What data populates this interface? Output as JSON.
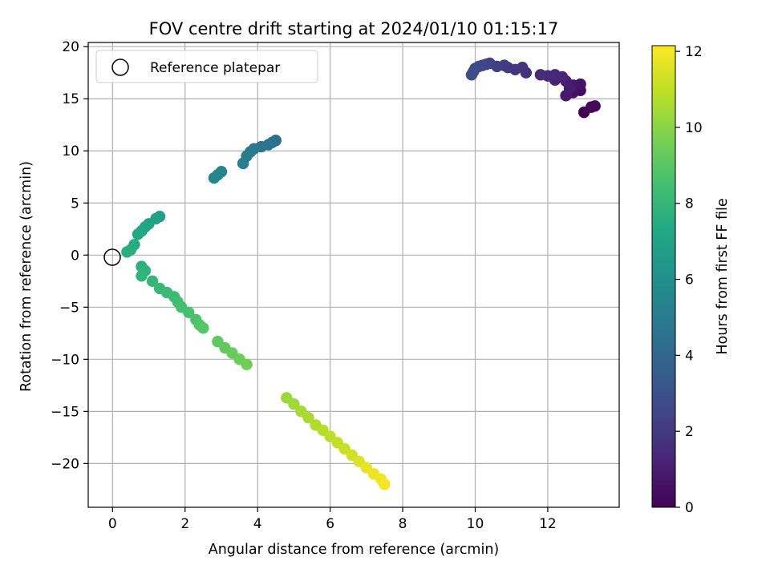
{
  "chart_data": {
    "type": "scatter",
    "title": "FOV centre drift starting at 2024/01/10 01:15:17",
    "xlabel": "Angular distance from reference (arcmin)",
    "ylabel": "Rotation from reference (arcmin)",
    "colorbar_label": "Hours from first FF file",
    "colormap": "viridis",
    "xlim": [
      -0.67,
      13.97
    ],
    "ylim": [
      -24.2,
      20.4
    ],
    "clim": [
      0,
      12.15
    ],
    "xticks": [
      0,
      2,
      4,
      6,
      8,
      10,
      12
    ],
    "xtick_labels": [
      "0",
      "2",
      "4",
      "6",
      "8",
      "10",
      "12"
    ],
    "yticks": [
      20,
      15,
      10,
      5,
      0,
      -5,
      -10,
      -15,
      -20
    ],
    "ytick_labels": [
      "20",
      "15",
      "10",
      "5",
      "0",
      "−5",
      "−10",
      "−15",
      "−20"
    ],
    "cticks": [
      0,
      2,
      4,
      6,
      8,
      10,
      12
    ],
    "ctick_labels": [
      "0",
      "2",
      "4",
      "6",
      "8",
      "10",
      "12"
    ],
    "grid": true,
    "legend": {
      "position": "top-left",
      "entries": [
        "Reference platepar"
      ]
    },
    "reference": {
      "x": 0,
      "y": 0
    },
    "points": [
      [
        13.0,
        13.7,
        0.05
      ],
      [
        13.2,
        14.2,
        0.15
      ],
      [
        13.3,
        14.3,
        0.25
      ],
      [
        12.9,
        15.8,
        0.4
      ],
      [
        12.7,
        15.6,
        0.55
      ],
      [
        12.9,
        16.4,
        0.65
      ],
      [
        12.7,
        16.3,
        0.75
      ],
      [
        12.5,
        15.3,
        0.85
      ],
      [
        12.6,
        16.0,
        0.95
      ],
      [
        12.5,
        16.7,
        1.05
      ],
      [
        12.2,
        16.8,
        1.15
      ],
      [
        12.4,
        17.1,
        1.25
      ],
      [
        12.2,
        17.3,
        1.35
      ],
      [
        12.0,
        17.2,
        1.45
      ],
      [
        11.8,
        17.3,
        1.55
      ],
      [
        11.4,
        17.5,
        1.7
      ],
      [
        11.3,
        18.0,
        1.8
      ],
      [
        11.1,
        17.8,
        1.9
      ],
      [
        10.9,
        18.0,
        2.0
      ],
      [
        10.8,
        18.2,
        2.1
      ],
      [
        10.6,
        18.1,
        2.2
      ],
      [
        10.4,
        18.4,
        2.3
      ],
      [
        10.3,
        18.3,
        2.4
      ],
      [
        10.2,
        18.2,
        2.5
      ],
      [
        10.1,
        18.1,
        2.6
      ],
      [
        10.0,
        17.9,
        2.7
      ],
      [
        9.95,
        17.6,
        2.8
      ],
      [
        9.9,
        17.3,
        2.9
      ],
      [
        4.5,
        11.0,
        4.4
      ],
      [
        4.4,
        10.8,
        4.5
      ],
      [
        4.3,
        10.6,
        4.6
      ],
      [
        4.1,
        10.4,
        4.7
      ],
      [
        3.9,
        10.2,
        4.8
      ],
      [
        3.8,
        9.9,
        4.9
      ],
      [
        3.7,
        9.5,
        5.0
      ],
      [
        3.6,
        8.8,
        5.1
      ],
      [
        3.0,
        8.0,
        5.4
      ],
      [
        2.9,
        7.7,
        5.5
      ],
      [
        2.8,
        7.4,
        5.6
      ],
      [
        1.3,
        3.7,
        6.8
      ],
      [
        1.2,
        3.5,
        6.9
      ],
      [
        1.0,
        3.0,
        7.0
      ],
      [
        0.9,
        2.7,
        7.1
      ],
      [
        0.8,
        2.3,
        7.2
      ],
      [
        0.7,
        2.0,
        7.3
      ],
      [
        0.6,
        1.0,
        7.4
      ],
      [
        0.5,
        0.5,
        7.5
      ],
      [
        0.4,
        0.3,
        7.6
      ],
      [
        0.8,
        -1.1,
        7.7
      ],
      [
        0.9,
        -1.5,
        7.8
      ],
      [
        0.8,
        -2.0,
        7.9
      ],
      [
        1.1,
        -2.5,
        8.0
      ],
      [
        1.3,
        -3.2,
        8.1
      ],
      [
        1.5,
        -3.6,
        8.2
      ],
      [
        1.7,
        -4.0,
        8.3
      ],
      [
        1.8,
        -4.5,
        8.4
      ],
      [
        1.9,
        -5.0,
        8.5
      ],
      [
        2.1,
        -5.5,
        8.6
      ],
      [
        2.3,
        -6.2,
        8.7
      ],
      [
        2.4,
        -6.7,
        8.8
      ],
      [
        2.5,
        -7.0,
        8.9
      ],
      [
        2.9,
        -8.3,
        9.1
      ],
      [
        3.1,
        -8.9,
        9.2
      ],
      [
        3.3,
        -9.4,
        9.3
      ],
      [
        3.5,
        -10.0,
        9.4
      ],
      [
        3.7,
        -10.5,
        9.5
      ],
      [
        4.8,
        -13.7,
        10.3
      ],
      [
        5.0,
        -14.3,
        10.4
      ],
      [
        5.2,
        -15.0,
        10.5
      ],
      [
        5.4,
        -15.6,
        10.6
      ],
      [
        5.6,
        -16.3,
        10.7
      ],
      [
        5.8,
        -16.8,
        10.8
      ],
      [
        6.0,
        -17.4,
        10.9
      ],
      [
        6.2,
        -18.0,
        11.0
      ],
      [
        6.4,
        -18.6,
        11.1
      ],
      [
        6.6,
        -19.2,
        11.3
      ],
      [
        6.8,
        -19.8,
        11.5
      ],
      [
        7.0,
        -20.4,
        11.7
      ],
      [
        7.2,
        -21.0,
        11.8
      ],
      [
        7.4,
        -21.5,
        11.9
      ],
      [
        7.5,
        -22.0,
        12.0
      ]
    ]
  }
}
